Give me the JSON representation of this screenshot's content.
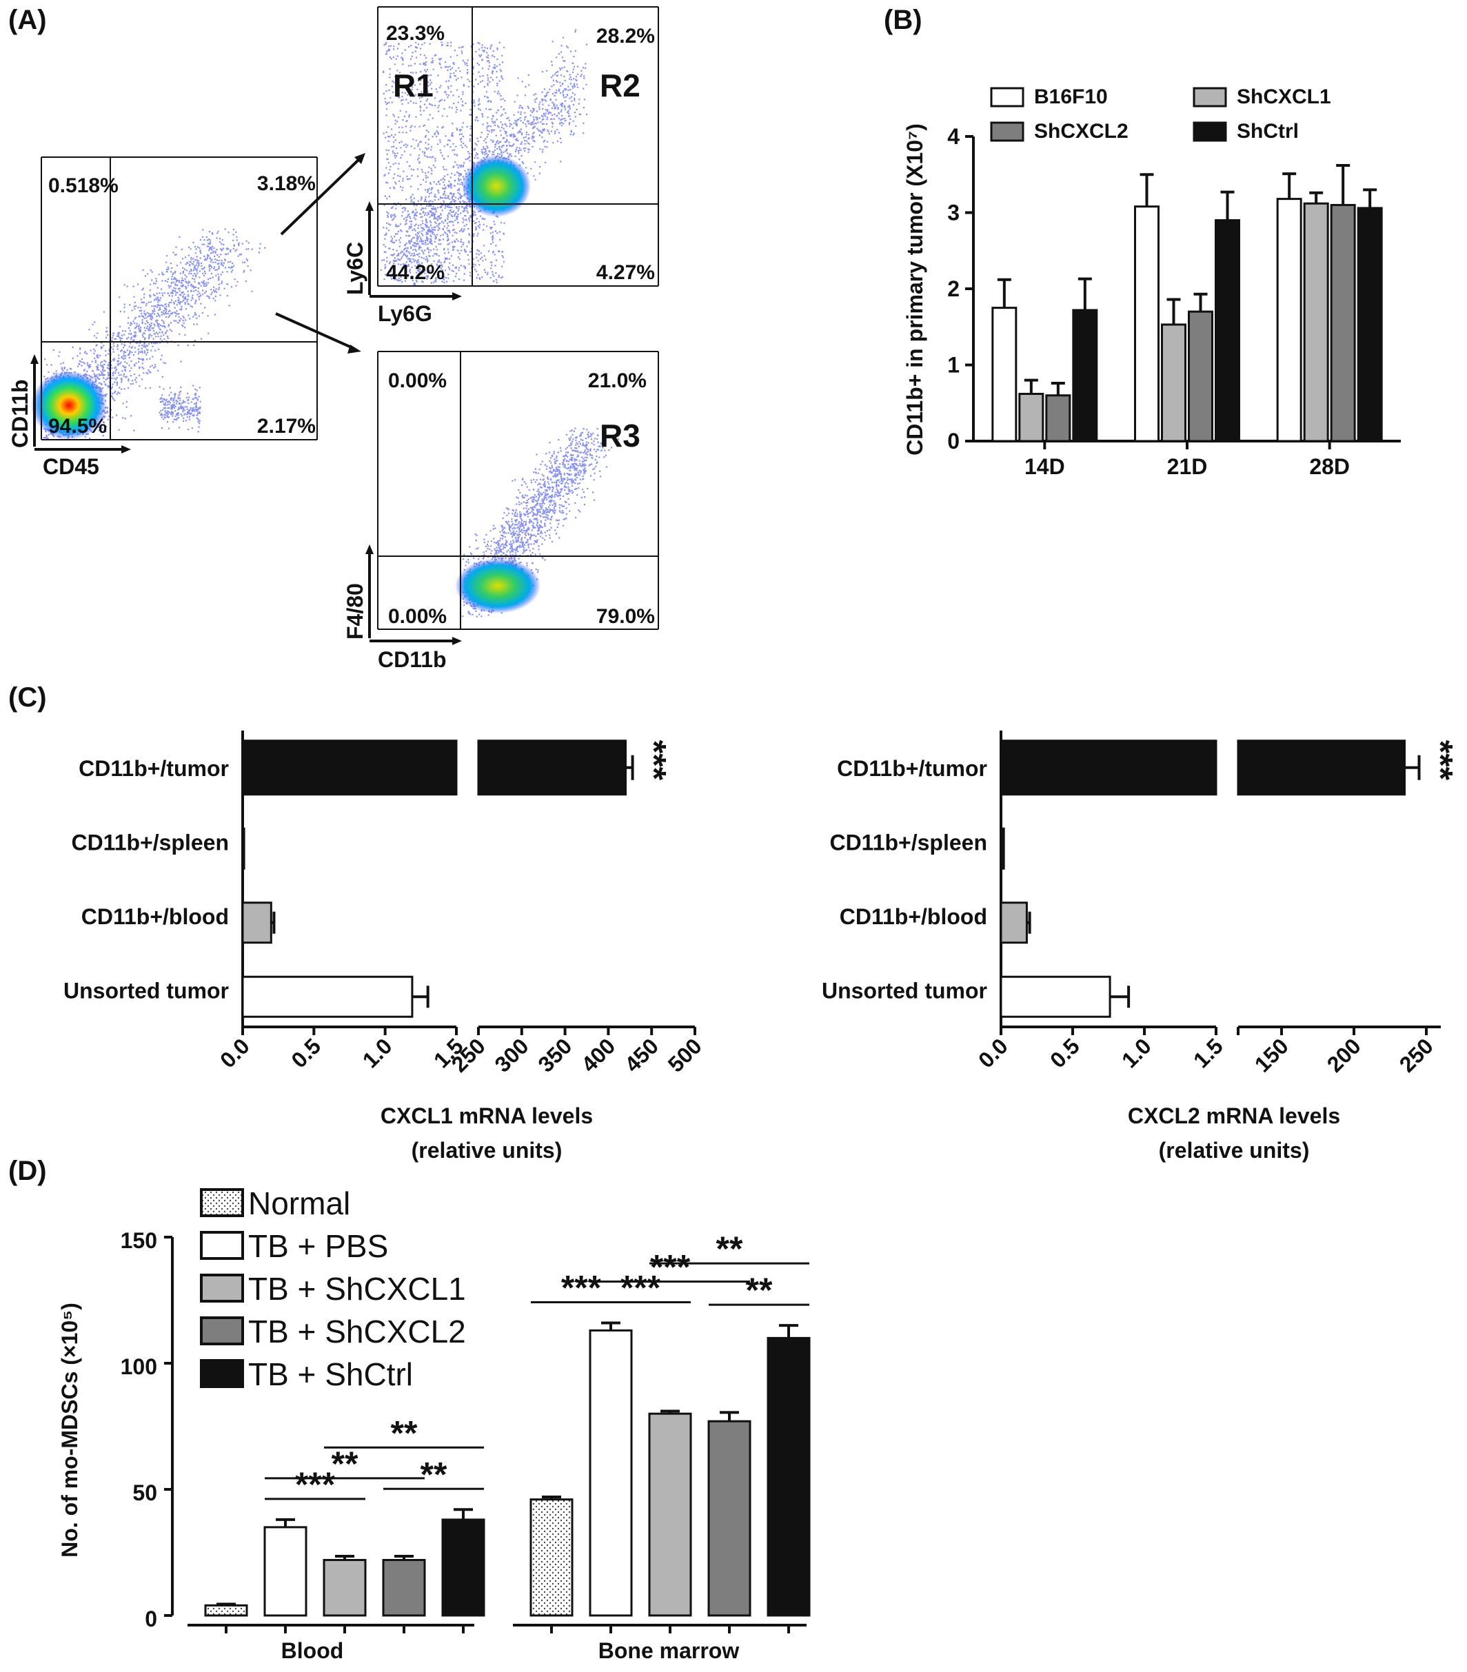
{
  "panels": {
    "A": "(A)",
    "B": "(B)",
    "C": "(C)",
    "D": "(D)"
  },
  "flow": {
    "main": {
      "xlabel": "CD45",
      "ylabel": "CD11b",
      "q_ul": "0.518%",
      "q_ur": "3.18%",
      "q_ll": "94.5%",
      "q_lr": "2.17%"
    },
    "ly6": {
      "xlabel": "Ly6G",
      "ylabel": "Ly6C",
      "q_ul": "23.3%",
      "q_ur": "28.2%",
      "q_ll": "44.2%",
      "q_lr": "4.27%",
      "gate1": "R1",
      "gate2": "R2"
    },
    "f480": {
      "xlabel": "CD11b",
      "ylabel": "F4/80",
      "q_ul": "0.00%",
      "q_ur": "21.0%",
      "q_ll": "0.00%",
      "q_lr": "79.0%",
      "gate3": "R3"
    }
  },
  "colors": {
    "white_bar": "#ffffff",
    "light_gray": "#b4b4b4",
    "mid_gray": "#7e7e7e",
    "black": "#111111",
    "dotted": "#f0f0f0"
  },
  "chart_data": [
    {
      "id": "B",
      "type": "bar",
      "title": "",
      "xlabel": "",
      "ylabel": "CD11b+ in primary tumor (X10⁷)",
      "ylim": [
        0,
        4
      ],
      "yticks": [
        "0",
        "1",
        "2",
        "3",
        "4"
      ],
      "categories": [
        "14D",
        "21D",
        "28D"
      ],
      "legend_position": "top",
      "series": [
        {
          "name": "B16F10",
          "color": "#ffffff",
          "values": [
            1.75,
            3.08,
            3.18
          ],
          "errors": [
            0.37,
            0.42,
            0.33
          ]
        },
        {
          "name": "ShCXCL1",
          "color": "#b4b4b4",
          "values": [
            0.62,
            1.53,
            3.12
          ],
          "errors": [
            0.18,
            0.33,
            0.14
          ]
        },
        {
          "name": "ShCXCL2",
          "color": "#7e7e7e",
          "values": [
            0.6,
            1.7,
            3.1
          ],
          "errors": [
            0.16,
            0.23,
            0.52
          ]
        },
        {
          "name": "ShCtrl",
          "color": "#111111",
          "values": [
            1.72,
            2.9,
            3.06
          ],
          "errors": [
            0.41,
            0.37,
            0.24
          ]
        }
      ]
    },
    {
      "id": "C1",
      "type": "bar",
      "orientation": "horizontal",
      "xlabel": "CXCL1 mRNA levels",
      "xlabel2": "(relative units)",
      "categories": [
        "CD11b+/tumor",
        "CD11b+/spleen",
        "CD11b+/blood",
        "Unsorted tumor"
      ],
      "values": [
        420,
        0.01,
        0.2,
        1.19
      ],
      "errors": [
        8,
        0,
        0.02,
        0.11
      ],
      "colors": [
        "#111111",
        "#111111",
        "#b4b4b4",
        "#ffffff"
      ],
      "significance": [
        "***",
        "",
        "",
        ""
      ],
      "broken_axis": true,
      "segment1_range": [
        0,
        1.5
      ],
      "segment1_ticks": [
        "0.0",
        "0.5",
        "1.0",
        "1.5"
      ],
      "segment2_range": [
        250,
        500
      ],
      "segment2_ticks": [
        "250",
        "300",
        "350",
        "400",
        "450",
        "500"
      ]
    },
    {
      "id": "C2",
      "type": "bar",
      "orientation": "horizontal",
      "xlabel": "CXCL2 mRNA levels",
      "xlabel2": "(relative units)",
      "categories": [
        "CD11b+/tumor",
        "CD11b+/spleen",
        "CD11b+/blood",
        "Unsorted tumor"
      ],
      "values": [
        235,
        0.02,
        0.18,
        0.76
      ],
      "errors": [
        10,
        0,
        0.02,
        0.13
      ],
      "colors": [
        "#111111",
        "#111111",
        "#b4b4b4",
        "#ffffff"
      ],
      "significance": [
        "***",
        "",
        "",
        ""
      ],
      "broken_axis": true,
      "segment1_range": [
        0,
        1.5
      ],
      "segment1_ticks": [
        "0.0",
        "0.5",
        "1.0",
        "1.5"
      ],
      "segment2_range": [
        120,
        260
      ],
      "segment2_ticks": [
        "150",
        "200",
        "250"
      ]
    },
    {
      "id": "D",
      "type": "bar",
      "xlabel": "",
      "ylabel": "No. of mo-MDSCs (×10⁵)",
      "ylim": [
        0,
        150
      ],
      "yticks": [
        "0",
        "50",
        "100",
        "150"
      ],
      "categories": [
        "Blood",
        "Bone marrow"
      ],
      "legend_position": "top-left",
      "series": [
        {
          "name": "Normal",
          "color": "#f0f0f0",
          "pattern": "dots",
          "values": [
            4,
            46
          ],
          "errors": [
            0.5,
            1
          ]
        },
        {
          "name": "TB  +  PBS",
          "color": "#ffffff",
          "values": [
            35,
            113
          ],
          "errors": [
            3,
            3
          ]
        },
        {
          "name": "TB  +  ShCXCL1",
          "color": "#b4b4b4",
          "values": [
            22,
            80
          ],
          "errors": [
            1.5,
            1
          ]
        },
        {
          "name": "TB  +  ShCXCL2",
          "color": "#7e7e7e",
          "values": [
            22,
            77
          ],
          "errors": [
            1.5,
            3.5
          ]
        },
        {
          "name": "TB  +  ShCtrl",
          "color": "#111111",
          "values": [
            38,
            110
          ],
          "errors": [
            4,
            5
          ]
        }
      ],
      "significance": [
        {
          "group": 0,
          "from": 1,
          "to": 2,
          "label": "***",
          "level": 0
        },
        {
          "group": 0,
          "from": 1,
          "to": 3,
          "label": "**",
          "level": 1
        },
        {
          "group": 0,
          "from": 2,
          "to": 4,
          "label": "**",
          "level": 2
        },
        {
          "group": 0,
          "from": 3,
          "to": 4,
          "label": "**",
          "level": 0
        },
        {
          "group": 1,
          "from": 0,
          "to": 1,
          "label": "***",
          "level": 0
        },
        {
          "group": 1,
          "from": 1,
          "to": 2,
          "label": "***",
          "level": 0
        },
        {
          "group": 1,
          "from": 1,
          "to": 3,
          "label": "***",
          "level": 1
        },
        {
          "group": 1,
          "from": 2,
          "to": 4,
          "label": "**",
          "level": 2
        },
        {
          "group": 1,
          "from": 3,
          "to": 4,
          "label": "**",
          "level": 0
        }
      ]
    }
  ]
}
